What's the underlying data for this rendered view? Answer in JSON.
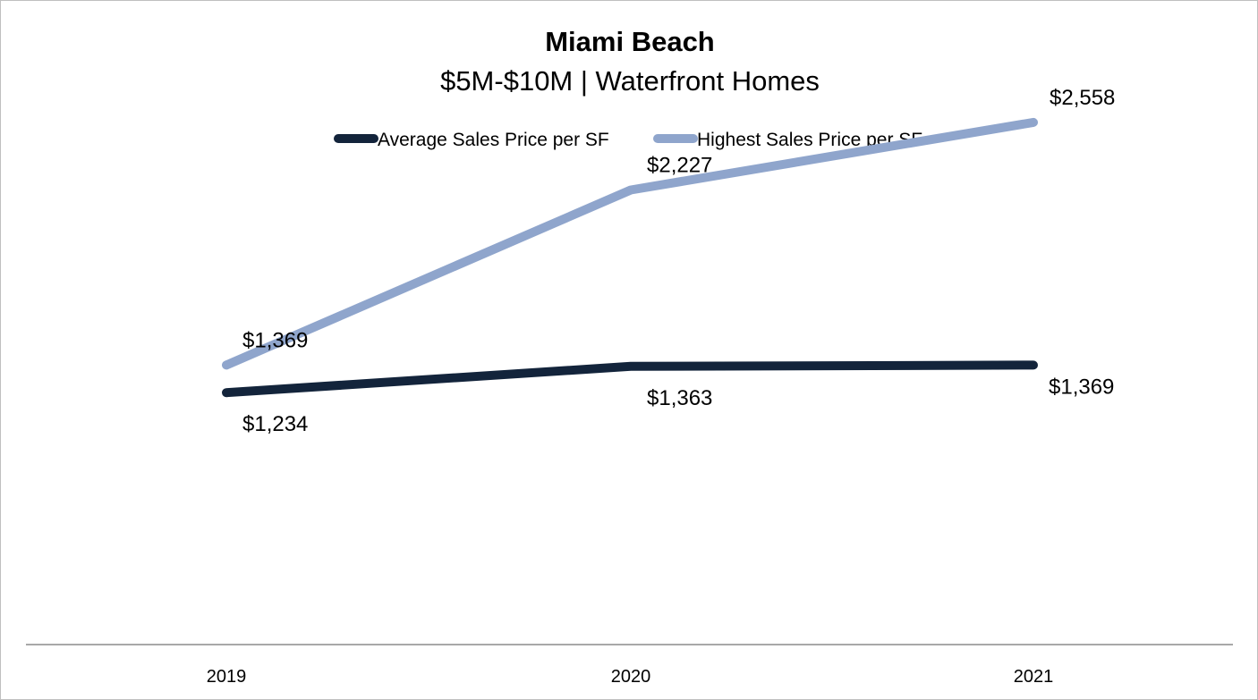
{
  "chart_data": {
    "type": "line",
    "title": "Miami Beach",
    "subtitle": "$5M-$10M | Waterfront Homes",
    "categories": [
      "2019",
      "2020",
      "2021"
    ],
    "series": [
      {
        "name": "Average Sales Price per SF",
        "values": [
          1234,
          1363,
          1369
        ],
        "labels": [
          "$1,234",
          "$1,363",
          "$1,369"
        ],
        "color": "#13243b",
        "label_position": "below"
      },
      {
        "name": "Highest Sales Price per SF",
        "values": [
          1369,
          2227,
          2558
        ],
        "labels": [
          "$1,369",
          "$2,227",
          "$2,558"
        ],
        "color": "#8fa5cc",
        "label_position": "above"
      }
    ],
    "xlabel": "",
    "ylabel": "",
    "ylim": [
      0,
      3000
    ],
    "grid": false,
    "legend": "top-center"
  }
}
